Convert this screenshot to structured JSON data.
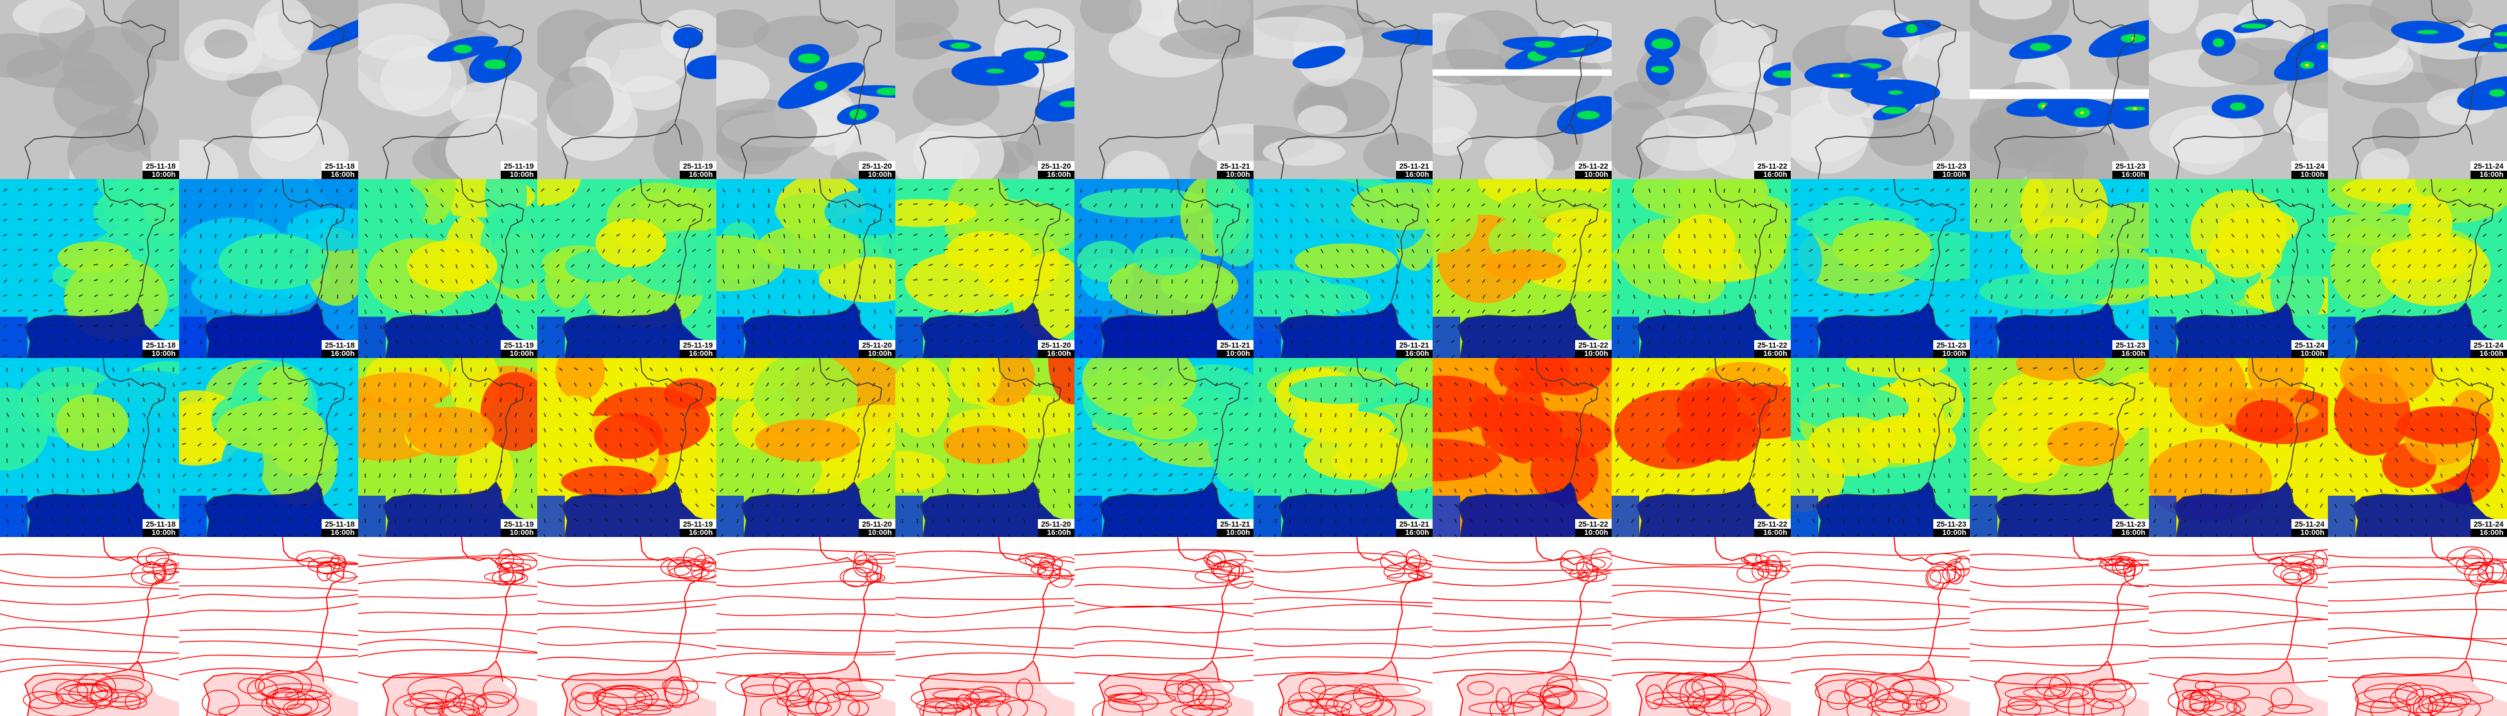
{
  "tile_timestamps": [
    {
      "date": "25-11-18",
      "hour": "10:00h"
    },
    {
      "date": "25-11-18",
      "hour": "16:00h"
    },
    {
      "date": "25-11-19",
      "hour": "10:00h"
    },
    {
      "date": "25-11-19",
      "hour": "16:00h"
    },
    {
      "date": "25-11-20",
      "hour": "10:00h"
    },
    {
      "date": "25-11-20",
      "hour": "16:00h"
    },
    {
      "date": "25-11-21",
      "hour": "10:00h"
    },
    {
      "date": "25-11-21",
      "hour": "16:00h"
    },
    {
      "date": "25-11-22",
      "hour": "10:00h"
    },
    {
      "date": "25-11-22",
      "hour": "16:00h"
    },
    {
      "date": "25-11-23",
      "hour": "10:00h"
    },
    {
      "date": "25-11-23",
      "hour": "16:00h"
    },
    {
      "date": "25-11-24",
      "hour": "10:00h"
    },
    {
      "date": "25-11-24",
      "hour": "16:00h"
    }
  ],
  "rows": [
    {
      "id": "clouds-precip",
      "background": "#bdbdbd",
      "land_bg": "#c8c8c8"
    },
    {
      "id": "wind-mean",
      "background": "#00c8f0"
    },
    {
      "id": "wind-gust",
      "background": "#00c8f0"
    },
    {
      "id": "pressure",
      "background": "#ffffff",
      "line_color": "#ff0000"
    }
  ],
  "wind_mean_levels": [
    0.45,
    0.35,
    0.55,
    0.55,
    0.5,
    0.55,
    0.4,
    0.45,
    0.7,
    0.6,
    0.45,
    0.5,
    0.6,
    0.65
  ],
  "wind_gust_levels": [
    0.45,
    0.5,
    0.75,
    0.8,
    0.7,
    0.75,
    0.45,
    0.6,
    0.95,
    0.9,
    0.6,
    0.7,
    0.85,
    0.9
  ],
  "precip_levels": [
    0.05,
    0.1,
    0.35,
    0.3,
    0.5,
    0.55,
    0.05,
    0.3,
    0.55,
    0.45,
    0.65,
    0.85,
    0.7,
    0.6
  ],
  "colors": {
    "coast": "#3a3a3a",
    "precip_low": "#0050e0",
    "precip_mid": "#00e050",
    "precip_high": "#ffe000",
    "wind_scale": [
      "#0010a0",
      "#0030e0",
      "#0090f0",
      "#00d0f0",
      "#30f0a0",
      "#a0f030",
      "#f0f000",
      "#ffa000",
      "#ff3000"
    ]
  }
}
